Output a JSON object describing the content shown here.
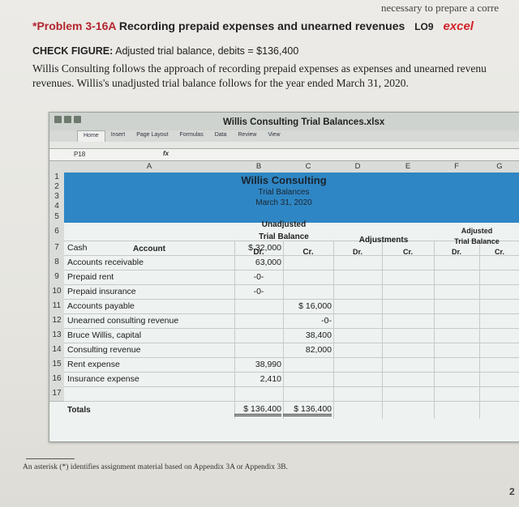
{
  "top_fragment": "necessary to prepare a corre",
  "problem": {
    "star": "*",
    "number": "Problem 3-16A",
    "title": "Recording prepaid expenses and unearned revenues",
    "lo": "LO9",
    "excel_logo": "excel",
    "excel_logo_letter": "X"
  },
  "check_figure": {
    "label": "CHECK FIGURE:",
    "text": "Adjusted trial balance, debits = $136,400"
  },
  "intro": {
    "line1": "Willis Consulting follows the approach of recording prepaid expenses as expenses and unearned revenu",
    "line2": "revenues. Willis's unadjusted trial balance follows for the year ended March 31, 2020."
  },
  "excel": {
    "window_title": "Willis Consulting Trial Balances.xlsx",
    "ribbon_tabs": [
      "Home",
      "Insert",
      "Page Layout",
      "Formulas",
      "Data",
      "Review",
      "View"
    ],
    "name_box": "P18",
    "fx": "fx",
    "columns": [
      "A",
      "B",
      "C",
      "D",
      "E",
      "F",
      "G"
    ],
    "row_numbers": [
      "1",
      "2",
      "3",
      "4",
      "5",
      "6",
      "7",
      "8",
      "9",
      "10",
      "11",
      "12",
      "13",
      "14",
      "15",
      "16",
      "17"
    ],
    "company": "Willis Consulting",
    "report": "Trial Balances",
    "date": "March 31, 2020",
    "unadjusted_1": "Unadjusted",
    "unadjusted_2": "Trial Balance",
    "adjustments": "Adjustments",
    "adjusted_1": "Adjusted",
    "adjusted_2": "Trial Balance",
    "account_header": "Account",
    "dr": "Dr.",
    "cr": "Cr.",
    "accounts": [
      {
        "name": "Cash",
        "dr": "$ 32,000",
        "cr": ""
      },
      {
        "name": "Accounts receivable",
        "dr": "63,000",
        "cr": ""
      },
      {
        "name": "Prepaid rent",
        "dr": "-0-",
        "cr": ""
      },
      {
        "name": "Prepaid insurance",
        "dr": "-0-",
        "cr": ""
      },
      {
        "name": "Accounts payable",
        "dr": "",
        "cr": "$ 16,000"
      },
      {
        "name": "Unearned consulting revenue",
        "dr": "",
        "cr": "-0-"
      },
      {
        "name": "Bruce Willis, capital",
        "dr": "",
        "cr": "38,400"
      },
      {
        "name": "Consulting revenue",
        "dr": "",
        "cr": "82,000"
      },
      {
        "name": "Rent expense",
        "dr": "38,990",
        "cr": ""
      },
      {
        "name": "Insurance expense",
        "dr": "2,410",
        "cr": ""
      }
    ],
    "totals_label": "Totals",
    "total_dr": "$ 136,400",
    "total_cr": "$ 136,400"
  },
  "footnote": "An asterisk (*) identifies assignment material based on Appendix 3A or Appendix 3B.",
  "page_number": "2",
  "colors": {
    "header_band": "#2f86c4",
    "problem_number": "#b3262d",
    "excel_red": "#d2232a",
    "excel_green": "#1f7a3c"
  }
}
